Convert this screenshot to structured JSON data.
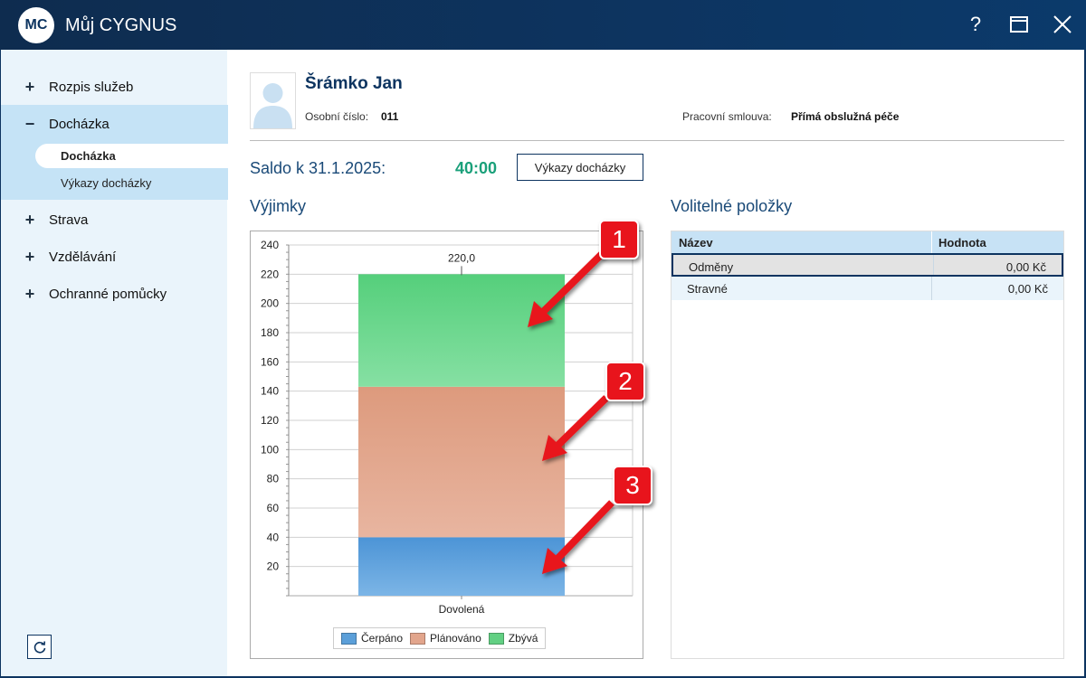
{
  "window": {
    "logo_text": "MC",
    "title": "Můj CYGNUS",
    "help_glyph": "?"
  },
  "sidebar": {
    "items": [
      {
        "label": "Rozpis služeb",
        "sign": "+"
      },
      {
        "label": "Docházka",
        "sign": "−"
      },
      {
        "label": "Strava",
        "sign": "+"
      },
      {
        "label": "Vzdělávání",
        "sign": "+"
      },
      {
        "label": "Ochranné pomůcky",
        "sign": "+"
      }
    ],
    "subitems": [
      {
        "label": "Docházka",
        "active": true
      },
      {
        "label": "Výkazy docházky",
        "active": false
      }
    ]
  },
  "profile": {
    "name": "Šrámko Jan",
    "personal_number_label": "Osobní číslo:",
    "personal_number": "011",
    "contract_label": "Pracovní smlouva:",
    "contract": "Přímá obslužná péče"
  },
  "saldo": {
    "label": "Saldo k 31.1.2025:",
    "value": "40:00",
    "button_label": "Výkazy docházky"
  },
  "exceptions": {
    "title": "Výjimky"
  },
  "chart_data": {
    "type": "bar",
    "stacked": true,
    "categories": [
      "Dovolená"
    ],
    "series": [
      {
        "name": "Čerpáno",
        "values": [
          40
        ],
        "color": "#5b9fd9"
      },
      {
        "name": "Plánováno",
        "values": [
          103
        ],
        "color": "#e2a58c"
      },
      {
        "name": "Zbývá",
        "values": [
          77
        ],
        "color": "#62d083"
      }
    ],
    "total_label": "220,0",
    "ylim": [
      0,
      240
    ],
    "yticks": [
      20,
      40,
      60,
      80,
      100,
      120,
      140,
      160,
      180,
      200,
      220,
      240
    ],
    "grid": true,
    "legend_position": "bottom"
  },
  "optional_items": {
    "title": "Volitelné položky",
    "columns": [
      "Název",
      "Hodnota"
    ],
    "rows": [
      {
        "name": "Odměny",
        "value": "0,00 Kč"
      },
      {
        "name": "Stravné",
        "value": "0,00 Kč"
      }
    ]
  },
  "callouts": [
    "1",
    "2",
    "3"
  ]
}
